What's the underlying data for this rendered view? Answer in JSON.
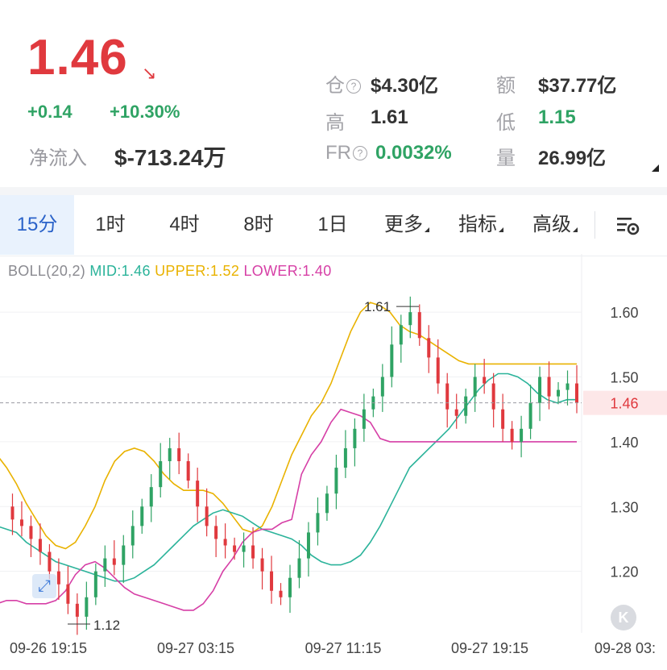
{
  "header": {
    "price": "1.46",
    "price_arrow": "↘",
    "change": "+0.14",
    "change_pct": "+10.30%",
    "net_inflow_label": "净流入",
    "net_inflow_value": "$-713.24万"
  },
  "stats": {
    "position_label": "仓",
    "position_value": "$4.30亿",
    "amount_label": "额",
    "amount_value": "$37.77亿",
    "high_label": "高",
    "high_value": "1.61",
    "low_label": "低",
    "low_value": "1.15",
    "fr_label": "FR",
    "fr_value": "0.0032%",
    "volume_label": "量",
    "volume_value": "26.99亿",
    "help_glyph": "?"
  },
  "tabs": [
    {
      "label": "15分",
      "active": true
    },
    {
      "label": "1时",
      "active": false
    },
    {
      "label": "4时",
      "active": false
    },
    {
      "label": "8时",
      "active": false
    },
    {
      "label": "1日",
      "active": false
    },
    {
      "label": "更多",
      "active": false,
      "dropdown": true
    },
    {
      "label": "指标",
      "active": false,
      "dropdown": true
    },
    {
      "label": "高级",
      "active": false,
      "dropdown": true
    }
  ],
  "icons": {
    "chart_settings": "chart-settings-icon",
    "collapse": "K",
    "expand": "⤢"
  },
  "boll": {
    "name": "BOLL(20,2)",
    "mid": "MID:1.46",
    "upper": "UPPER:1.52",
    "lower": "LOWER:1.40",
    "mid_color": "#2bb39a",
    "upper_color": "#e9b200",
    "lower_color": "#d63fa6"
  },
  "colors": {
    "up": "#2fa364",
    "down": "#e0393e",
    "accent": "#2b63c9"
  },
  "chart_data": {
    "type": "candlestick",
    "y_ticks": [
      "1.60",
      "1.50",
      "1.40",
      "1.30",
      "1.20"
    ],
    "y_range": [
      1.105,
      1.64
    ],
    "x_ticks": [
      "09-26 19:15",
      "09-27 03:15",
      "09-27 11:15",
      "09-27 19:15",
      "09-28 03:"
    ],
    "last_price_label": "1.46",
    "last_price": 1.46,
    "high_marker": "1.61",
    "low_marker": "1.12",
    "mid_series": [
      1.27,
      1.265,
      1.26,
      1.245,
      1.235,
      1.225,
      1.215,
      1.21,
      1.205,
      1.2,
      1.195,
      1.19,
      1.185,
      1.185,
      1.19,
      1.2,
      1.21,
      1.225,
      1.24,
      1.255,
      1.27,
      1.28,
      1.29,
      1.295,
      1.29,
      1.285,
      1.275,
      1.265,
      1.26,
      1.255,
      1.25,
      1.24,
      1.225,
      1.215,
      1.21,
      1.21,
      1.215,
      1.225,
      1.245,
      1.27,
      1.3,
      1.33,
      1.36,
      1.375,
      1.39,
      1.405,
      1.42,
      1.44,
      1.46,
      1.48,
      1.495,
      1.505,
      1.505,
      1.5,
      1.49,
      1.475,
      1.465,
      1.46,
      1.465,
      1.465
    ],
    "upper_series": [
      1.38,
      1.36,
      1.335,
      1.305,
      1.28,
      1.255,
      1.24,
      1.235,
      1.245,
      1.27,
      1.3,
      1.34,
      1.37,
      1.385,
      1.39,
      1.385,
      1.37,
      1.35,
      1.335,
      1.325,
      1.325,
      1.325,
      1.32,
      1.305,
      1.285,
      1.265,
      1.26,
      1.27,
      1.3,
      1.34,
      1.38,
      1.41,
      1.44,
      1.46,
      1.49,
      1.53,
      1.57,
      1.6,
      1.615,
      1.61,
      1.6,
      1.58,
      1.57,
      1.565,
      1.555,
      1.545,
      1.535,
      1.525,
      1.52,
      1.52,
      1.52,
      1.52,
      1.52,
      1.52,
      1.52,
      1.52,
      1.52,
      1.52,
      1.52,
      1.52
    ],
    "lower_series": [
      1.15,
      1.155,
      1.155,
      1.15,
      1.15,
      1.15,
      1.155,
      1.17,
      1.195,
      1.21,
      1.215,
      1.205,
      1.19,
      1.175,
      1.165,
      1.16,
      1.155,
      1.15,
      1.145,
      1.14,
      1.14,
      1.15,
      1.17,
      1.2,
      1.22,
      1.245,
      1.26,
      1.265,
      1.265,
      1.275,
      1.28,
      1.35,
      1.38,
      1.4,
      1.43,
      1.45,
      1.445,
      1.44,
      1.43,
      1.405,
      1.4,
      1.4,
      1.4,
      1.4,
      1.4,
      1.4,
      1.4,
      1.4,
      1.4,
      1.4,
      1.4,
      1.4,
      1.4,
      1.4,
      1.4,
      1.4,
      1.4,
      1.4,
      1.4,
      1.4
    ],
    "closes": [
      1.3,
      1.28,
      1.27,
      1.25,
      1.23,
      1.2,
      1.18,
      1.15,
      1.13,
      1.16,
      1.2,
      1.22,
      1.21,
      1.24,
      1.27,
      1.3,
      1.33,
      1.37,
      1.39,
      1.37,
      1.34,
      1.3,
      1.27,
      1.25,
      1.24,
      1.23,
      1.24,
      1.22,
      1.2,
      1.17,
      1.16,
      1.19,
      1.22,
      1.26,
      1.29,
      1.32,
      1.36,
      1.39,
      1.42,
      1.45,
      1.47,
      1.5,
      1.55,
      1.58,
      1.6,
      1.56,
      1.53,
      1.49,
      1.45,
      1.44,
      1.47,
      1.5,
      1.49,
      1.45,
      1.42,
      1.4,
      1.42,
      1.46,
      1.5,
      1.47,
      1.48,
      1.49,
      1.46
    ]
  }
}
